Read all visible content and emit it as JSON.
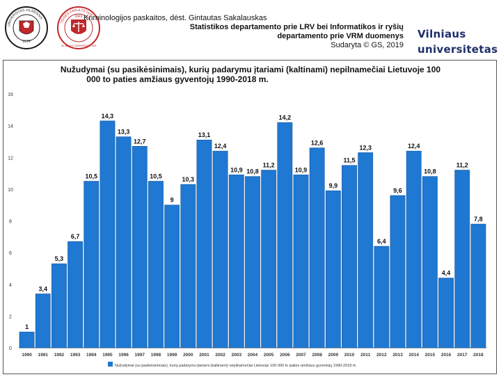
{
  "header": {
    "line1": "Kriminologijos paskaitos, dėst. Gintautas Sakalauskas",
    "line2": "Statistikos departamento prie LRV bei Informatikos ir ryšių",
    "line3": "departamento prie VRM duomenys",
    "line4": "Sudaryta © GS, 2019"
  },
  "brand": {
    "line1": "Vilniaus",
    "line2": "universitetas"
  },
  "logos": {
    "logo1_text": "UNIVERSITAS VILNENSIS",
    "logo1_year": "1579",
    "logo2_text": "TEISĖS FAKULTETAS",
    "logo2_year": "1641",
    "logo2_bottom": "VILNIAUS UNIVERSITETAS"
  },
  "colors": {
    "bar": "#1f78d1",
    "barEdge": "#0d4f96",
    "brand": "#1f2f6b",
    "seal": "#c0282b"
  },
  "chart_data": {
    "type": "bar",
    "title": "Nužudymai (su pasikėsinimais), kurių padarymu įtariami (kaltinami) nepilnamečiai Lietuvoje 100 000 to paties amžiaus gyventojų 1990-2018 m.",
    "title_line1": "Nužudymai (su pasikėsinimais), kurių padarymu įtariami (kaltinami) nepilnamečiai Lietuvoje 100",
    "title_line2": "000 to paties amžiaus gyventojų 1990-2018 m.",
    "categories": [
      "1990",
      "1991",
      "1992",
      "1993",
      "1994",
      "1995",
      "1996",
      "1997",
      "1998",
      "1999",
      "2000",
      "2001",
      "2002",
      "2003",
      "2004",
      "2005",
      "2006",
      "2007",
      "2008",
      "2009",
      "2010",
      "2011",
      "2012",
      "2013",
      "2014",
      "2015",
      "2016",
      "2017",
      "2018"
    ],
    "values": [
      1,
      3.4,
      5.3,
      6.7,
      10.5,
      14.3,
      13.3,
      12.7,
      10.5,
      9,
      10.3,
      13.1,
      12.4,
      10.9,
      10.8,
      11.2,
      14.2,
      10.9,
      12.6,
      9.9,
      11.5,
      12.3,
      6.4,
      9.6,
      12.4,
      10.8,
      4.4,
      11.2,
      7.8
    ],
    "labels": [
      "1",
      "3,4",
      "5,3",
      "6,7",
      "10,5",
      "14,3",
      "13,3",
      "12,7",
      "10,5",
      "9",
      "10,3",
      "13,1",
      "12,4",
      "10,9",
      "10,8",
      "11,2",
      "14,2",
      "10,9",
      "12,6",
      "9,9",
      "11,5",
      "12,3",
      "6,4",
      "9,6",
      "12,4",
      "10,8",
      "4,4",
      "11,2",
      "7,8"
    ],
    "ylim": [
      0,
      16
    ],
    "yticks": [
      "0",
      "2",
      "4",
      "6",
      "8",
      "10",
      "12",
      "14",
      "16"
    ],
    "legend": "Nužudymai (su pasikėsinimais), kurių padarymu įtariami (kaltinami) nepilnamečiai Lietuvoje 100 000 to paties amžiaus gyventojų 1990-2018 m.",
    "legend_position": "bottom-center",
    "grid": false,
    "xlabel": "",
    "ylabel": ""
  }
}
